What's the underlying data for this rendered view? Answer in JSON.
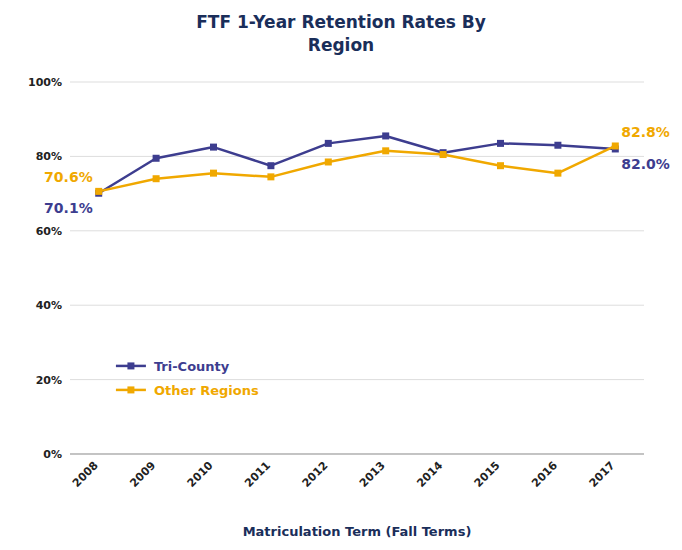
{
  "chart_data": {
    "type": "line",
    "title": "FTF 1-Year Retention Rates By\nRegion",
    "x_label": "Matriculation Term (Fall Terms)",
    "categories": [
      "2008",
      "2009",
      "2010",
      "2011",
      "2012",
      "2013",
      "2014",
      "2015",
      "2016",
      "2017"
    ],
    "series": [
      {
        "name": "Tri-County",
        "color": "#3d3d8f",
        "marker": "square",
        "values": [
          70.1,
          79.5,
          82.5,
          77.5,
          83.5,
          85.5,
          81.0,
          83.5,
          83.0,
          82.0
        ]
      },
      {
        "name": "Other Regions",
        "color": "#f0a800",
        "marker": "square",
        "values": [
          70.6,
          74.0,
          75.5,
          74.5,
          78.5,
          81.5,
          80.5,
          77.5,
          75.5,
          82.8
        ]
      }
    ],
    "annotations": [
      {
        "text": "70.1%",
        "x": "2008",
        "y": 70.1
      },
      {
        "text": "70.6%",
        "x": "2008",
        "y": 70.6
      },
      {
        "text": "82.8%",
        "x": "2017",
        "y": 82.8
      },
      {
        "text": "82.0%",
        "x": "2017",
        "y": 82.0
      }
    ],
    "ylim": [
      0,
      100
    ],
    "yticks": [
      {
        "value": 0,
        "label": "0%"
      },
      {
        "value": 20,
        "label": "20%"
      },
      {
        "value": 40,
        "label": "40%"
      },
      {
        "value": 60,
        "label": "60%"
      },
      {
        "value": 80,
        "label": "80%"
      },
      {
        "value": 100,
        "label": "100%"
      }
    ],
    "grid": true,
    "legend": "lower left"
  }
}
